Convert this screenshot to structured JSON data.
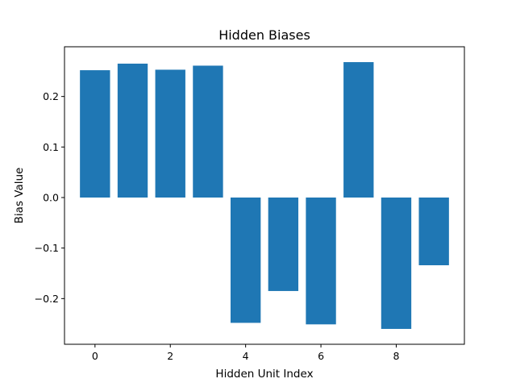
{
  "chart_data": {
    "type": "bar",
    "title": "Hidden Biases",
    "xlabel": "Hidden Unit Index",
    "ylabel": "Bias Value",
    "x": [
      0,
      1,
      2,
      3,
      4,
      5,
      6,
      7,
      8,
      9
    ],
    "values": [
      0.252,
      0.265,
      0.253,
      0.261,
      -0.248,
      -0.185,
      -0.251,
      0.268,
      -0.26,
      -0.134
    ],
    "xlim": [
      -0.81,
      9.81
    ],
    "ylim": [
      -0.2904,
      0.2984
    ],
    "xticks": [
      0,
      2,
      4,
      6,
      8
    ],
    "xtick_labels": [
      "0",
      "2",
      "4",
      "6",
      "8"
    ],
    "yticks": [
      -0.2,
      -0.1,
      0.0,
      0.1,
      0.2
    ],
    "ytick_labels": [
      "−0.2",
      "−0.1",
      "0.0",
      "0.1",
      "0.2"
    ],
    "bar_width": 0.8,
    "bar_color": "#1f77b4",
    "grid": false,
    "legend": "none"
  }
}
